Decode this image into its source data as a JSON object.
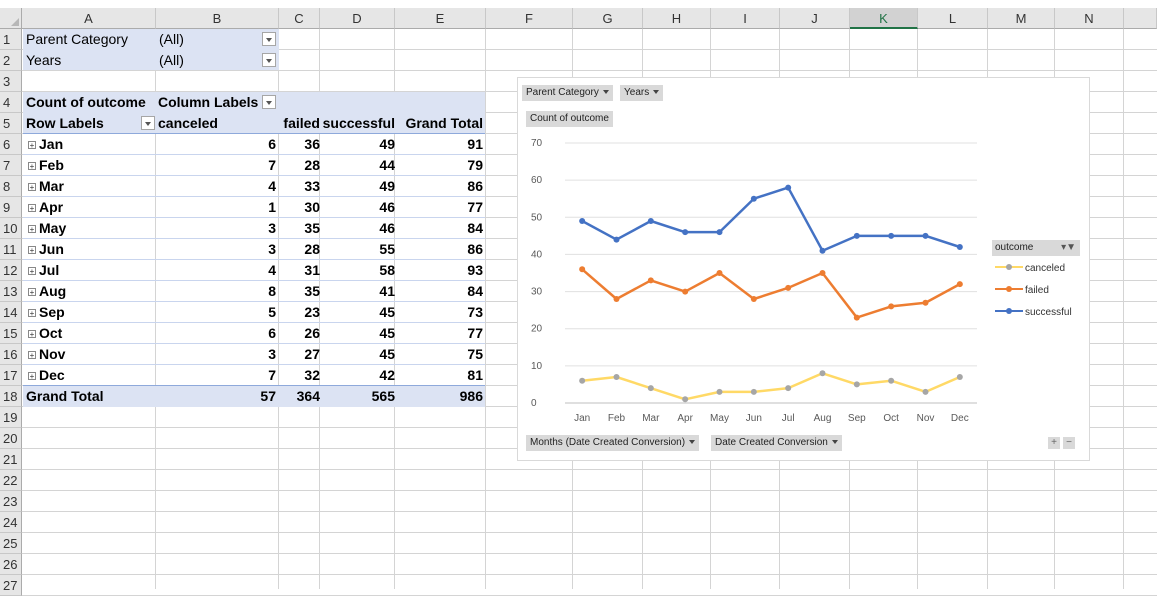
{
  "columns": [
    "A",
    "B",
    "C",
    "D",
    "E",
    "F",
    "G",
    "H",
    "I",
    "J",
    "K",
    "L",
    "M",
    "N"
  ],
  "rows": [
    "1",
    "2",
    "3",
    "4",
    "5",
    "6",
    "7",
    "8",
    "9",
    "10",
    "11",
    "12",
    "13",
    "14",
    "15",
    "16",
    "17",
    "18",
    "19",
    "20",
    "21",
    "22",
    "23",
    "24",
    "25",
    "26",
    "27"
  ],
  "filters": [
    {
      "label": "Parent Category",
      "value": "(All)"
    },
    {
      "label": "Years",
      "value": "(All)"
    }
  ],
  "pivot": {
    "count_label": "Count of outcome",
    "column_labels": "Column Labels",
    "row_labels": "Row Labels",
    "headers": [
      "canceled",
      "failed",
      "successful",
      "Grand Total"
    ],
    "months": [
      {
        "name": "Jan",
        "values": [
          "6",
          "36",
          "49",
          "91"
        ]
      },
      {
        "name": "Feb",
        "values": [
          "7",
          "28",
          "44",
          "79"
        ]
      },
      {
        "name": "Mar",
        "values": [
          "4",
          "33",
          "49",
          "86"
        ]
      },
      {
        "name": "Apr",
        "values": [
          "1",
          "30",
          "46",
          "77"
        ]
      },
      {
        "name": "May",
        "values": [
          "3",
          "35",
          "46",
          "84"
        ]
      },
      {
        "name": "Jun",
        "values": [
          "3",
          "28",
          "55",
          "86"
        ]
      },
      {
        "name": "Jul",
        "values": [
          "4",
          "31",
          "58",
          "93"
        ]
      },
      {
        "name": "Aug",
        "values": [
          "8",
          "35",
          "41",
          "84"
        ]
      },
      {
        "name": "Sep",
        "values": [
          "5",
          "23",
          "45",
          "73"
        ]
      },
      {
        "name": "Oct",
        "values": [
          "6",
          "26",
          "45",
          "77"
        ]
      },
      {
        "name": "Nov",
        "values": [
          "3",
          "27",
          "45",
          "75"
        ]
      },
      {
        "name": "Dec",
        "values": [
          "7",
          "32",
          "42",
          "81"
        ]
      }
    ],
    "grand_total": {
      "name": "Grand Total",
      "values": [
        "57",
        "364",
        "565",
        "986"
      ]
    }
  },
  "chart_ui": {
    "filter_parent": "Parent Category",
    "filter_years": "Years",
    "value_field": "Count of outcome",
    "axis_field_months": "Months (Date Created Conversion)",
    "axis_field_date": "Date Created Conversion",
    "legend_title": "outcome",
    "plus": "+",
    "minus": "−"
  },
  "chart_data": {
    "type": "line",
    "categories": [
      "Jan",
      "Feb",
      "Mar",
      "Apr",
      "May",
      "Jun",
      "Jul",
      "Aug",
      "Sep",
      "Oct",
      "Nov",
      "Dec"
    ],
    "series": [
      {
        "name": "canceled",
        "values": [
          6,
          7,
          4,
          1,
          3,
          3,
          4,
          8,
          5,
          6,
          3,
          7
        ],
        "color": "#ffd966"
      },
      {
        "name": "failed",
        "values": [
          36,
          28,
          33,
          30,
          35,
          28,
          31,
          35,
          23,
          26,
          27,
          32
        ],
        "color": "#ed7d31"
      },
      {
        "name": "successful",
        "values": [
          49,
          44,
          49,
          46,
          46,
          55,
          58,
          41,
          45,
          45,
          45,
          42
        ],
        "color": "#4472c4"
      }
    ],
    "ylim": [
      0,
      70
    ],
    "yticks": [
      0,
      10,
      20,
      30,
      40,
      50,
      60,
      70
    ],
    "grid": true,
    "legend": "right"
  }
}
